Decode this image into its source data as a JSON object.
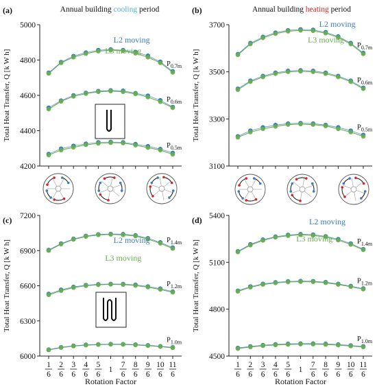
{
  "chart_data": [
    {
      "type": "line",
      "panel": "(a)",
      "title_parts": [
        {
          "text": "Annual building ",
          "color": "#111111"
        },
        {
          "text": "cooling",
          "color": "#4fb0e0"
        },
        {
          "text": " period",
          "color": "#111111"
        }
      ],
      "ylabel": "Total Heat Transfer, Q [k W h]",
      "xlabel": "",
      "ylim": [
        4200,
        5000
      ],
      "yticks": [
        "4200",
        "4400",
        "4600",
        "4800",
        "5000"
      ],
      "x": [
        1,
        2,
        3,
        4,
        5,
        6,
        7,
        8,
        9,
        10,
        11
      ],
      "xtick_labels": [],
      "series_labels": [
        {
          "text": "L2 moving",
          "color": "#3a7cc4"
        },
        {
          "text": "L3 moving",
          "color": "#6ab04c"
        }
      ],
      "series": [
        {
          "group": "P0.7m",
          "label_base": "P",
          "label_sub": "0.7m",
          "l2": [
            4728,
            4788,
            4822,
            4842,
            4856,
            4860,
            4856,
            4846,
            4824,
            4790,
            4736
          ],
          "l3": [
            4724,
            4784,
            4816,
            4836,
            4850,
            4856,
            4852,
            4838,
            4816,
            4784,
            4730
          ]
        },
        {
          "group": "P0.6m",
          "label_base": "P",
          "label_sub": "0.6m",
          "l2": [
            4530,
            4570,
            4600,
            4614,
            4624,
            4628,
            4626,
            4612,
            4598,
            4572,
            4534
          ],
          "l3": [
            4522,
            4566,
            4594,
            4610,
            4620,
            4624,
            4620,
            4608,
            4590,
            4564,
            4530
          ]
        },
        {
          "group": "P0.5m",
          "label_base": "P",
          "label_sub": "0.5m",
          "l2": [
            4268,
            4298,
            4314,
            4326,
            4334,
            4336,
            4334,
            4324,
            4312,
            4296,
            4274
          ],
          "l3": [
            4262,
            4290,
            4306,
            4320,
            4328,
            4332,
            4330,
            4318,
            4304,
            4290,
            4266
          ]
        }
      ]
    },
    {
      "type": "line",
      "panel": "(b)",
      "title_parts": [
        {
          "text": "Annual building ",
          "color": "#111111"
        },
        {
          "text": "heating",
          "color": "#e02020"
        },
        {
          "text": " period",
          "color": "#111111"
        }
      ],
      "ylabel": "Total Heat Transfer, Q [k W h]",
      "xlabel": "",
      "ylim": [
        3100,
        3700
      ],
      "yticks": [
        "3100",
        "3300",
        "3500",
        "3700"
      ],
      "x": [
        1,
        2,
        3,
        4,
        5,
        6,
        7,
        8,
        9,
        10,
        11
      ],
      "xtick_labels": [],
      "series_labels": [
        {
          "text": "L2 moving",
          "color": "#3a7cc4"
        },
        {
          "text": "L3 moving",
          "color": "#6ab04c"
        }
      ],
      "series": [
        {
          "group": "P0.7m",
          "label_base": "P",
          "label_sub": "0.7m",
          "l2": [
            3575,
            3622,
            3648,
            3666,
            3676,
            3680,
            3678,
            3668,
            3650,
            3622,
            3580
          ],
          "l3": [
            3572,
            3618,
            3644,
            3662,
            3672,
            3676,
            3674,
            3664,
            3646,
            3618,
            3576
          ]
        },
        {
          "group": "P0.6m",
          "label_base": "P",
          "label_sub": "0.6m",
          "l2": [
            3428,
            3462,
            3482,
            3496,
            3504,
            3506,
            3504,
            3496,
            3482,
            3462,
            3432
          ],
          "l3": [
            3424,
            3458,
            3478,
            3492,
            3500,
            3502,
            3500,
            3492,
            3478,
            3458,
            3428
          ]
        },
        {
          "group": "P0.5m",
          "label_base": "P",
          "label_sub": "0.5m",
          "l2": [
            3226,
            3250,
            3264,
            3274,
            3280,
            3282,
            3280,
            3274,
            3264,
            3250,
            3232
          ],
          "l3": [
            3222,
            3244,
            3258,
            3268,
            3276,
            3278,
            3276,
            3270,
            3258,
            3244,
            3226
          ]
        }
      ]
    },
    {
      "type": "line",
      "panel": "(c)",
      "title_parts": [],
      "ylabel": "Total Heat Transfer, Q [k W h]",
      "xlabel": "Rotation Factor",
      "ylim": [
        6000,
        7200
      ],
      "yticks": [
        "6000",
        "6300",
        "6600",
        "6900",
        "7200"
      ],
      "x": [
        1,
        2,
        3,
        4,
        5,
        6,
        7,
        8,
        9,
        10,
        11
      ],
      "xtick_labels": [
        {
          "num": "1",
          "den": "6"
        },
        {
          "num": "2",
          "den": "6"
        },
        {
          "num": "3",
          "den": "6"
        },
        {
          "num": "4",
          "den": "6"
        },
        {
          "num": "5",
          "den": "6"
        },
        {
          "num": "1",
          "den": ""
        },
        {
          "num": "7",
          "den": "6"
        },
        {
          "num": "8",
          "den": "6"
        },
        {
          "num": "9",
          "den": "6"
        },
        {
          "num": "10",
          "den": "6"
        },
        {
          "num": "11",
          "den": "6"
        }
      ],
      "series_labels": [
        {
          "text": "L2 moving",
          "color": "#3a7cc4"
        },
        {
          "text": "L3 moving",
          "color": "#6ab04c"
        }
      ],
      "series": [
        {
          "group": "P1.4m",
          "label_base": "P",
          "label_sub": "1.4m",
          "l2": [
            6905,
            6960,
            7000,
            7025,
            7038,
            7042,
            7040,
            7030,
            7005,
            6970,
            6925
          ],
          "l3": [
            6900,
            6955,
            6995,
            7020,
            7034,
            7038,
            7034,
            7024,
            6998,
            6962,
            6918
          ]
        },
        {
          "group": "P1.2m",
          "label_base": "P",
          "label_sub": "1.2m",
          "l2": [
            6530,
            6565,
            6590,
            6605,
            6612,
            6615,
            6614,
            6608,
            6594,
            6575,
            6550
          ],
          "l3": [
            6522,
            6558,
            6584,
            6600,
            6608,
            6612,
            6610,
            6602,
            6588,
            6568,
            6544
          ]
        },
        {
          "group": "P1.0m",
          "label_base": "P",
          "label_sub": "1.0m",
          "l2": [
            6055,
            6075,
            6088,
            6096,
            6100,
            6102,
            6101,
            6098,
            6092,
            6084,
            6074
          ],
          "l3": [
            6052,
            6072,
            6085,
            6093,
            6098,
            6100,
            6099,
            6095,
            6089,
            6081,
            6071
          ]
        }
      ]
    },
    {
      "type": "line",
      "panel": "(d)",
      "title_parts": [],
      "ylabel": "Total Heat Transfer, Q [k W h]",
      "xlabel": "Rotation Factor",
      "ylim": [
        4500,
        5400
      ],
      "yticks": [
        "4500",
        "4800",
        "5100",
        "5400"
      ],
      "x": [
        1,
        2,
        3,
        4,
        5,
        6,
        7,
        8,
        9,
        10,
        11
      ],
      "xtick_labels": [
        {
          "num": "1",
          "den": "6"
        },
        {
          "num": "2",
          "den": "6"
        },
        {
          "num": "3",
          "den": "6"
        },
        {
          "num": "4",
          "den": "6"
        },
        {
          "num": "5",
          "den": "6"
        },
        {
          "num": "1",
          "den": ""
        },
        {
          "num": "7",
          "den": "6"
        },
        {
          "num": "8",
          "den": "6"
        },
        {
          "num": "9",
          "den": "6"
        },
        {
          "num": "10",
          "den": "6"
        },
        {
          "num": "11",
          "den": "6"
        }
      ],
      "series_labels": [
        {
          "text": "L2 moving",
          "color": "#3a7cc4"
        },
        {
          "text": "L3 moving",
          "color": "#6ab04c"
        }
      ],
      "series": [
        {
          "group": "P1.4m",
          "label_base": "P",
          "label_sub": "1.4m",
          "l2": [
            5170,
            5215,
            5245,
            5264,
            5275,
            5280,
            5277,
            5266,
            5248,
            5220,
            5184
          ],
          "l3": [
            5166,
            5210,
            5240,
            5260,
            5270,
            5276,
            5272,
            5262,
            5242,
            5214,
            5180
          ]
        },
        {
          "group": "P1.2m",
          "label_base": "P",
          "label_sub": "1.2m",
          "l2": [
            4918,
            4945,
            4962,
            4972,
            4978,
            4980,
            4979,
            4973,
            4962,
            4948,
            4932
          ],
          "l3": [
            4914,
            4940,
            4958,
            4968,
            4974,
            4976,
            4975,
            4969,
            4958,
            4944,
            4928
          ]
        },
        {
          "group": "P1.0m",
          "label_base": "P",
          "label_sub": "1.0m",
          "l2": [
            4552,
            4562,
            4570,
            4575,
            4578,
            4580,
            4580,
            4578,
            4574,
            4568,
            4562
          ],
          "l3": [
            4548,
            4558,
            4566,
            4571,
            4574,
            4576,
            4576,
            4574,
            4570,
            4564,
            4558
          ]
        }
      ]
    }
  ],
  "colors": {
    "l2_marker": "#3a7cc4",
    "l3_marker": "#6ab04c",
    "line": "#6ab04c",
    "axis": "#222222"
  }
}
